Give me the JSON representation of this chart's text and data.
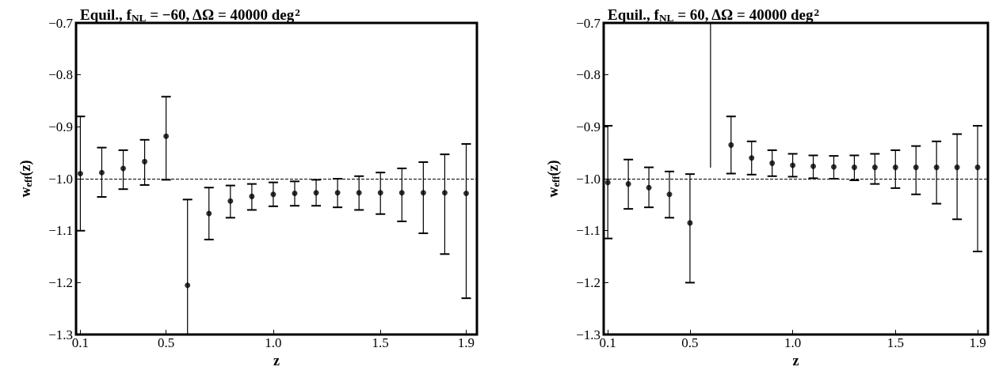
{
  "chart_data": [
    {
      "type": "scatter",
      "title": "Equil., f$_{NL}$ = −60, ΔΩ = 40000 deg$^{2}$",
      "xlabel": "z",
      "ylabel": "w$_{eff}$(z)",
      "x": [
        0.1,
        0.2,
        0.3,
        0.4,
        0.5,
        0.6,
        0.7,
        0.8,
        0.9,
        1.0,
        1.1,
        1.2,
        1.3,
        1.4,
        1.5,
        1.6,
        1.7,
        1.8,
        1.9
      ],
      "values": [
        -0.99,
        -0.988,
        -0.98,
        -0.967,
        -0.918,
        -1.205,
        -1.067,
        -1.043,
        -1.034,
        -1.03,
        -1.028,
        -1.027,
        -1.027,
        -1.027,
        -1.027,
        -1.027,
        -1.027,
        -1.027,
        -1.028
      ],
      "errors": [
        [
          -1.1,
          -0.88
        ],
        [
          -1.035,
          -0.94
        ],
        [
          -1.02,
          -0.945
        ],
        [
          -1.012,
          -0.925
        ],
        [
          -1.002,
          -0.842
        ],
        [
          -1.3,
          -1.04
        ],
        [
          -1.117,
          -1.017
        ],
        [
          -1.075,
          -1.013
        ],
        [
          -1.06,
          -1.01
        ],
        [
          -1.053,
          -1.007
        ],
        [
          -1.052,
          -1.005
        ],
        [
          -1.052,
          -1.002
        ],
        [
          -1.055,
          -1.0
        ],
        [
          -1.06,
          -0.995
        ],
        [
          -1.068,
          -0.988
        ],
        [
          -1.082,
          -0.98
        ],
        [
          -1.105,
          -0.968
        ],
        [
          -1.145,
          -0.953
        ],
        [
          -1.23,
          -0.933
        ]
      ],
      "xlim": [
        0.08,
        1.95
      ],
      "xticks": [
        0.1,
        0.5,
        {
          "value": 1.0,
          "label": "1.0"
        },
        1.5,
        1.9
      ],
      "ylim": [
        -1.3,
        -0.7
      ],
      "yticks": [
        {
          "value": -1.3,
          "label": "−1.3"
        },
        {
          "value": -1.2,
          "label": "−1.2"
        },
        {
          "value": -1.1,
          "label": "−1.1"
        },
        {
          "value": -1.0,
          "label": "−1.0"
        },
        {
          "value": -0.9,
          "label": "−0.9"
        },
        {
          "value": -0.8,
          "label": "−0.8"
        },
        {
          "value": -0.7,
          "label": "−0.7"
        }
      ],
      "ref_lines": [
        {
          "axis": "y",
          "value": -1.0,
          "line_style": "dashed"
        }
      ],
      "grid": false,
      "legend": false,
      "marker": "circle"
    },
    {
      "type": "scatter",
      "title": "Equil., f$_{NL}$ = 60, ΔΩ = 40000 deg$^{2}$",
      "xlabel": "z",
      "ylabel": "w$_{eff}$(z)",
      "x": [
        0.1,
        0.2,
        0.3,
        0.4,
        0.5,
        0.6,
        0.7,
        0.8,
        0.9,
        1.0,
        1.1,
        1.2,
        1.3,
        1.4,
        1.5,
        1.6,
        1.7,
        1.8,
        1.9
      ],
      "series": [
        {
          "color": "#000000",
          "marker": "circle",
          "values": [
            -1.007,
            -1.01,
            -1.017,
            -1.03,
            -1.085,
            null,
            -0.935,
            -0.96,
            -0.97,
            -0.974,
            -0.976,
            -0.977,
            -0.978,
            -0.978,
            -0.978,
            -0.978,
            -0.978,
            -0.978,
            -0.978
          ],
          "errors": [
            [
              -1.115,
              -0.898
            ],
            [
              -1.058,
              -0.963
            ],
            [
              -1.055,
              -0.978
            ],
            [
              -1.075,
              -0.986
            ],
            [
              -1.2,
              -0.991
            ],
            null,
            [
              -0.99,
              -0.88
            ],
            [
              -0.992,
              -0.928
            ],
            [
              -0.995,
              -0.945
            ],
            [
              -0.996,
              -0.952
            ],
            [
              -0.999,
              -0.955
            ],
            [
              -1.0,
              -0.956
            ],
            [
              -1.003,
              -0.955
            ],
            [
              -1.01,
              -0.952
            ],
            [
              -1.018,
              -0.945
            ],
            [
              -1.03,
              -0.937
            ],
            [
              -1.048,
              -0.928
            ],
            [
              -1.078,
              -0.914
            ],
            [
              -1.14,
              -0.898
            ]
          ]
        },
        {
          "type": "line",
          "color": "#000000",
          "marker": "none",
          "x": [
            0.6,
            0.6
          ],
          "values": [
            -0.978,
            -0.7
          ]
        }
      ],
      "xlim": [
        0.08,
        1.95
      ],
      "xticks": [
        0.1,
        0.5,
        {
          "value": 1.0,
          "label": "1.0"
        },
        1.5,
        1.9
      ],
      "ylim": [
        -1.3,
        -0.7
      ],
      "yticks": [
        {
          "value": -1.3,
          "label": "−1.3"
        },
        {
          "value": -1.2,
          "label": "−1.2"
        },
        {
          "value": -1.1,
          "label": "−1.1"
        },
        {
          "value": -1.0,
          "label": "−1.0"
        },
        {
          "value": -0.9,
          "label": "−0.9"
        },
        {
          "value": -0.8,
          "label": "−0.8"
        },
        {
          "value": -0.7,
          "label": "−0.7"
        }
      ],
      "ref_lines": [
        {
          "axis": "y",
          "value": -1.0,
          "line_style": "dashed"
        }
      ],
      "grid": false,
      "legend": false
    }
  ]
}
